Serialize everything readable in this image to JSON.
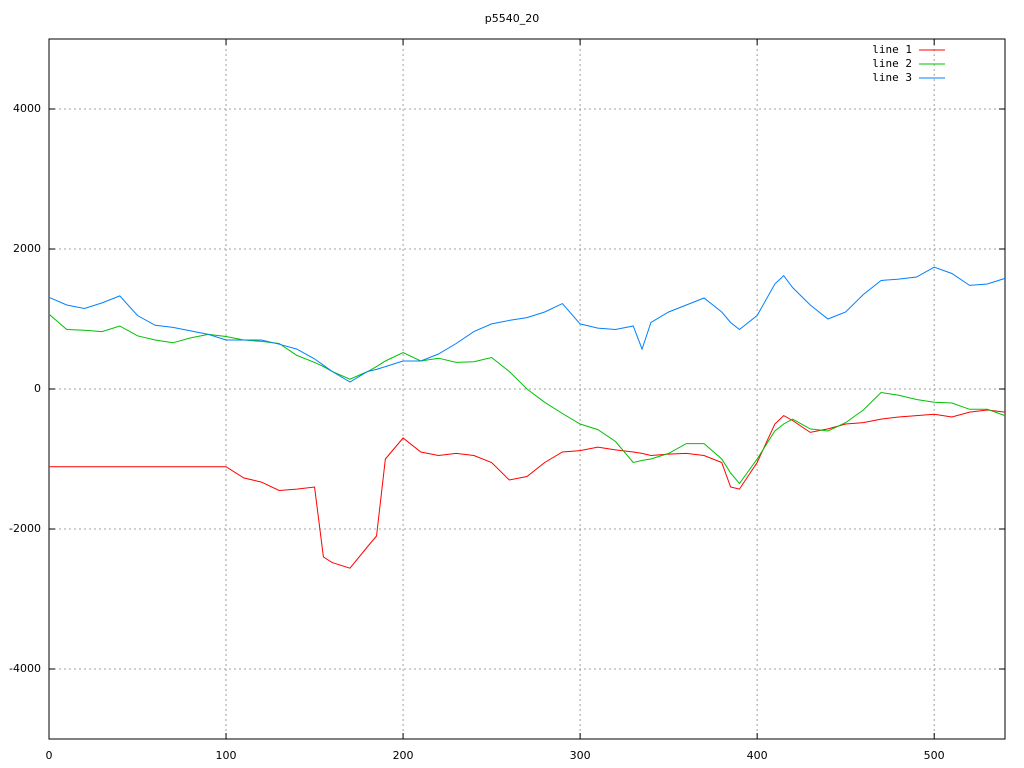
{
  "chart_data": {
    "type": "line",
    "title": "p5540_20",
    "x": [
      0,
      10,
      20,
      30,
      40,
      50,
      60,
      70,
      80,
      90,
      100,
      110,
      120,
      130,
      140,
      150,
      155,
      160,
      170,
      180,
      185,
      190,
      200,
      210,
      220,
      230,
      240,
      250,
      260,
      270,
      280,
      290,
      300,
      310,
      320,
      330,
      335,
      340,
      350,
      360,
      370,
      380,
      385,
      390,
      400,
      410,
      415,
      420,
      430,
      440,
      450,
      460,
      470,
      480,
      490,
      500,
      510,
      520,
      530,
      540
    ],
    "series": [
      {
        "name": "line 1",
        "color": "#ff0000",
        "values": [
          -1110,
          -1110,
          -1110,
          -1110,
          -1110,
          -1110,
          -1110,
          -1110,
          -1110,
          -1110,
          -1110,
          -1270,
          -1330,
          -1450,
          -1430,
          -1400,
          -2400,
          -2480,
          -2560,
          -2250,
          -2100,
          -1000,
          -700,
          -900,
          -950,
          -920,
          -950,
          -1050,
          -1300,
          -1250,
          -1050,
          -900,
          -880,
          -830,
          -870,
          -900,
          -920,
          -950,
          -930,
          -920,
          -950,
          -1050,
          -1400,
          -1430,
          -1050,
          -500,
          -380,
          -450,
          -620,
          -570,
          -500,
          -480,
          -430,
          -400,
          -380,
          -360,
          -400,
          -330,
          -300,
          -330
        ]
      },
      {
        "name": "line 2",
        "color": "#00c000",
        "values": [
          1070,
          850,
          840,
          820,
          900,
          760,
          700,
          660,
          730,
          780,
          750,
          700,
          680,
          650,
          480,
          380,
          320,
          250,
          140,
          250,
          320,
          400,
          520,
          400,
          440,
          380,
          390,
          450,
          250,
          0,
          -190,
          -350,
          -500,
          -580,
          -750,
          -1050,
          -1020,
          -1000,
          -920,
          -780,
          -780,
          -1000,
          -1200,
          -1350,
          -1000,
          -600,
          -500,
          -430,
          -570,
          -600,
          -480,
          -300,
          -50,
          -90,
          -150,
          -190,
          -200,
          -290,
          -290,
          -380
        ]
      },
      {
        "name": "line 3",
        "color": "#0080ff",
        "values": [
          1310,
          1200,
          1150,
          1230,
          1330,
          1050,
          910,
          880,
          830,
          780,
          700,
          700,
          700,
          640,
          570,
          430,
          340,
          250,
          100,
          250,
          280,
          320,
          400,
          400,
          500,
          650,
          820,
          930,
          980,
          1020,
          1100,
          1220,
          930,
          870,
          850,
          900,
          570,
          950,
          1100,
          1200,
          1300,
          1100,
          950,
          850,
          1050,
          1500,
          1620,
          1450,
          1200,
          1000,
          1100,
          1350,
          1550,
          1570,
          1600,
          1740,
          1650,
          1480,
          1500,
          1580
        ]
      }
    ],
    "xlim": [
      0,
      540
    ],
    "ylim": [
      -5000,
      5000
    ],
    "xticks": [
      0,
      100,
      200,
      300,
      400,
      500
    ],
    "yticks": [
      -4000,
      -2000,
      0,
      2000,
      4000
    ],
    "grid": true,
    "legend": "top-right"
  }
}
